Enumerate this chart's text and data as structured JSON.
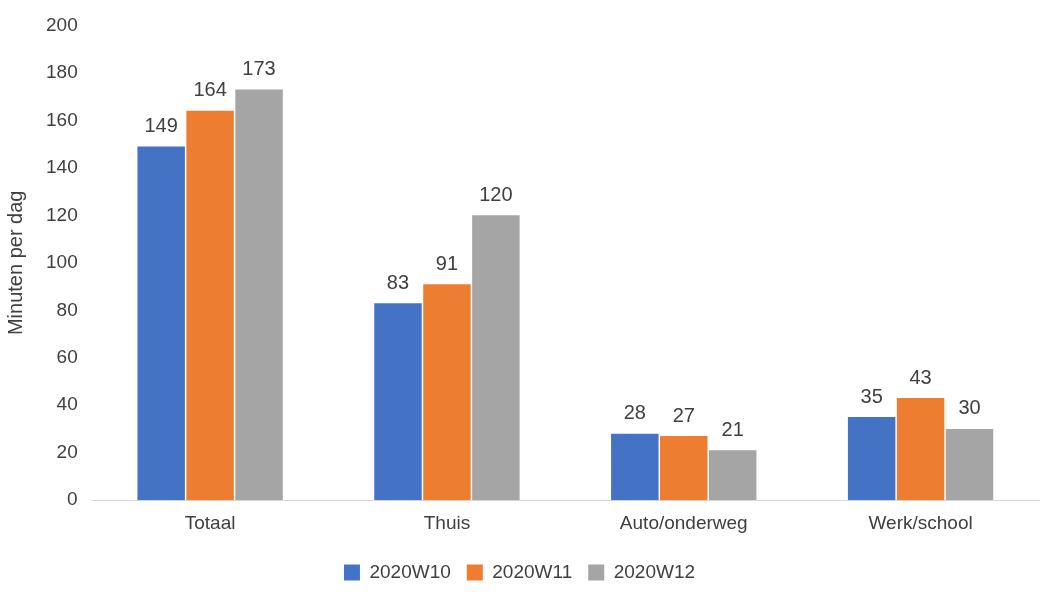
{
  "chart_data": {
    "type": "bar",
    "ylabel": "Minuten per dag",
    "categories": [
      "Totaal",
      "Thuis",
      "Auto/onderweg",
      "Werk/school"
    ],
    "series": [
      {
        "name": "2020W10",
        "color": "#4472c4",
        "values": [
          149,
          83,
          28,
          35
        ]
      },
      {
        "name": "2020W11",
        "color": "#ed7d31",
        "values": [
          164,
          91,
          27,
          43
        ]
      },
      {
        "name": "2020W12",
        "color": "#a5a5a5",
        "values": [
          173,
          120,
          21,
          30
        ]
      }
    ],
    "ylim": [
      0,
      200
    ],
    "yticks": [
      0,
      20,
      40,
      60,
      80,
      100,
      120,
      140,
      160,
      180,
      200
    ],
    "grid": false,
    "legend": "bottom",
    "data_labels": true
  }
}
